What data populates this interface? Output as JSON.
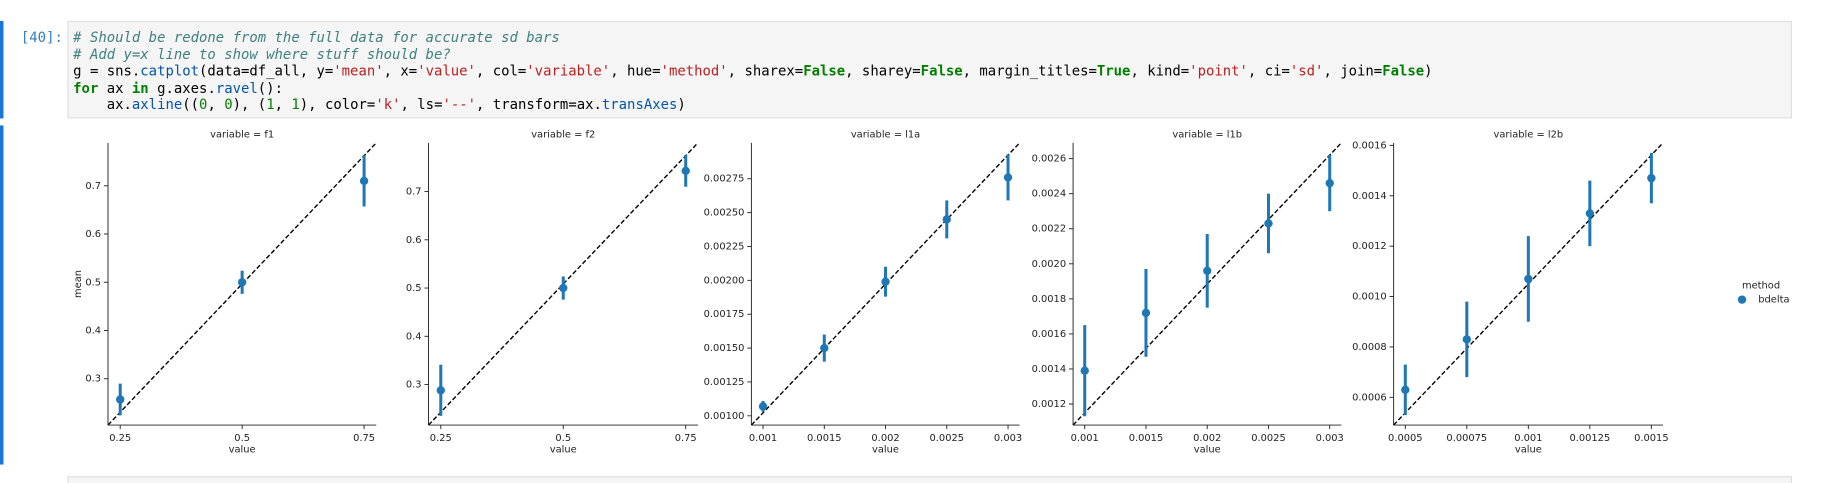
{
  "cell": {
    "prompt": "[40]:",
    "code": [
      "# Should be redone from the full data for accurate sd bars",
      "# Add y=x line to show where stuff should be?",
      "g = sns.catplot(data=df_all, y='mean', x='value', col='variable', hue='method', sharex=False, sharey=False, margin_titles=True, kind='point', ci='sd', join=False)",
      "for ax in g.axes.ravel():",
      "    ax.axline((0, 0), (1, 1), color='k', ls='--', transform=ax.transAxes)"
    ]
  },
  "legend": {
    "title": "method"
  },
  "chart_data": [
    {
      "type": "point",
      "title": "variable = f1",
      "xlabel": "value",
      "ylabel": "mean",
      "categories": [
        "0.25",
        "0.5",
        "0.75"
      ],
      "xlim": [
        -0.1,
        2.1
      ],
      "ylim": [
        0.204,
        0.789
      ],
      "yticks": [
        0.3,
        0.4,
        0.5,
        0.6,
        0.7
      ],
      "series": [
        {
          "name": "bdelta",
          "color": "#1f77b4",
          "values": [
            0.257,
            0.5,
            0.71
          ],
          "errors": [
            0.033,
            0.024,
            0.053
          ]
        }
      ]
    },
    {
      "type": "point",
      "title": "variable = f2",
      "xlabel": "value",
      "categories": [
        "0.25",
        "0.5",
        "0.75"
      ],
      "xlim": [
        -0.1,
        2.1
      ],
      "ylim": [
        0.216,
        0.801
      ],
      "yticks": [
        0.3,
        0.4,
        0.5,
        0.6,
        0.7
      ],
      "series": [
        {
          "name": "bdelta",
          "color": "#1f77b4",
          "values": [
            0.288,
            0.5,
            0.743
          ],
          "errors": [
            0.053,
            0.024,
            0.033
          ]
        }
      ]
    },
    {
      "type": "point",
      "title": "variable = l1a",
      "xlabel": "value",
      "categories": [
        "0.001",
        "0.0015",
        "0.002",
        "0.0025",
        "0.003"
      ],
      "xlim": [
        -0.19,
        4.19
      ],
      "ylim": [
        0.000932,
        0.003015
      ],
      "yticks": [
        {
          "value": 0.001,
          "label": "0.00100"
        },
        {
          "value": 0.00125,
          "label": "0.00125"
        },
        {
          "value": 0.0015,
          "label": "0.00150"
        },
        {
          "value": 0.00175,
          "label": "0.00175"
        },
        {
          "value": 0.002,
          "label": "0.00200"
        },
        {
          "value": 0.00225,
          "label": "0.00225"
        },
        {
          "value": 0.0025,
          "label": "0.00250"
        },
        {
          "value": 0.00275,
          "label": "0.00275"
        }
      ],
      "series": [
        {
          "name": "bdelta",
          "color": "#1f77b4",
          "values": [
            0.00107,
            0.0015,
            0.00199,
            0.00245,
            0.00276
          ],
          "errors": [
            4e-05,
            0.0001,
            0.00011,
            0.00014,
            0.00017
          ]
        }
      ]
    },
    {
      "type": "point",
      "title": "variable = l1b",
      "xlabel": "value",
      "categories": [
        "0.001",
        "0.0015",
        "0.002",
        "0.0025",
        "0.003"
      ],
      "xlim": [
        -0.19,
        4.19
      ],
      "ylim": [
        0.00108,
        0.00269
      ],
      "yticks": [
        0.0012,
        0.0014,
        0.0016,
        0.0018,
        {
          "value": 0.002,
          "label": "0.0020"
        },
        0.0022,
        0.0024,
        0.0026
      ],
      "series": [
        {
          "name": "bdelta",
          "color": "#1f77b4",
          "values": [
            0.00139,
            0.00172,
            0.00196,
            0.00223,
            0.00246
          ],
          "errors": [
            0.00026,
            0.00025,
            0.00021,
            0.00017,
            0.00016
          ]
        }
      ]
    },
    {
      "type": "point",
      "title": "variable = l2b",
      "xlabel": "value",
      "categories": [
        "0.0005",
        "0.00075",
        "0.001",
        "0.00125",
        "0.0015"
      ],
      "xlim": [
        -0.19,
        4.19
      ],
      "ylim": [
        0.00049,
        0.00161
      ],
      "yticks": [
        0.0006,
        0.0008,
        {
          "value": 0.001,
          "label": "0.0010"
        },
        0.0012,
        0.0014,
        0.0016
      ],
      "series": [
        {
          "name": "bdelta",
          "color": "#1f77b4",
          "values": [
            0.00063,
            0.00083,
            0.00107,
            0.00133,
            0.00147
          ],
          "errors": [
            0.0001,
            0.00015,
            0.00017,
            0.00013,
            0.0001
          ]
        }
      ]
    }
  ]
}
